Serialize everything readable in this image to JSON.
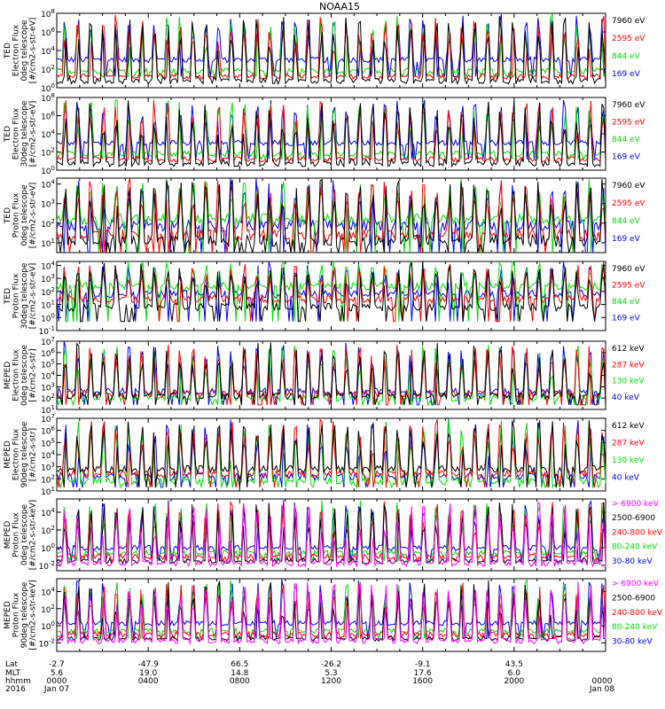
{
  "title": "NOAA15",
  "chart_data": [
    {
      "type": "line",
      "ylabel_lines": [
        "TED",
        "Electron Flux",
        "0deg telescope",
        "[#/cm2-s-str-eV]"
      ],
      "yticks": [
        "10^0",
        "10^2",
        "10^4",
        "10^6",
        "10^8"
      ],
      "log_range": [
        0,
        8
      ],
      "baseline": 1.5,
      "series": [
        {
          "name": "7960 eV",
          "color": "#000000",
          "level": 0.7
        },
        {
          "name": "2595 eV",
          "color": "#ff0000",
          "level": 1.2
        },
        {
          "name": "844 eV",
          "color": "#00dd00",
          "level": 1.8
        },
        {
          "name": "169 eV",
          "color": "#0000ff",
          "level": 3.0
        }
      ]
    },
    {
      "type": "line",
      "ylabel_lines": [
        "TED",
        "Electron Flux",
        "30deg telescope",
        "[#/cm2-s-str-eV]"
      ],
      "yticks": [
        "10^0",
        "10^2",
        "10^4",
        "10^6",
        "10^8"
      ],
      "log_range": [
        0,
        8
      ],
      "baseline": 1.5,
      "series": [
        {
          "name": "7960 eV",
          "color": "#000000",
          "level": 0.7
        },
        {
          "name": "2595 eV",
          "color": "#ff0000",
          "level": 1.2
        },
        {
          "name": "844 eV",
          "color": "#00dd00",
          "level": 1.8
        },
        {
          "name": "169 eV",
          "color": "#0000ff",
          "level": 3.0
        }
      ]
    },
    {
      "type": "line",
      "ylabel_lines": [
        "TED",
        "Proton Flux",
        "0deg telescope",
        "[#/cm2-s-str-eV]"
      ],
      "yticks": [
        "10^1",
        "10^2",
        "10^3",
        "10^4"
      ],
      "log_range": [
        0.5,
        4.3
      ],
      "baseline": 0.7,
      "series": [
        {
          "name": "7960 eV",
          "color": "#000000",
          "level": 1.1
        },
        {
          "name": "2595 eV",
          "color": "#ff0000",
          "level": 1.4
        },
        {
          "name": "844 eV",
          "color": "#00dd00",
          "level": 2.2
        },
        {
          "name": "169 eV",
          "color": "#0000ff",
          "level": 1.9
        }
      ]
    },
    {
      "type": "line",
      "ylabel_lines": [
        "TED",
        "Proton Flux",
        "30deg telescope",
        "[#/cm2-s-str-eV]"
      ],
      "yticks": [
        "10^-1",
        "10^0",
        "10^1",
        "10^2",
        "10^3",
        "10^4"
      ],
      "log_range": [
        -1,
        4.3
      ],
      "baseline": 0,
      "series": [
        {
          "name": "7960 eV",
          "color": "#000000",
          "level": 0.8
        },
        {
          "name": "2595 eV",
          "color": "#ff0000",
          "level": 1.4
        },
        {
          "name": "844 eV",
          "color": "#00dd00",
          "level": 2.4
        },
        {
          "name": "169 eV",
          "color": "#0000ff",
          "level": 1.8
        }
      ]
    },
    {
      "type": "line",
      "ylabel_lines": [
        "MEPED",
        "Electron Flux",
        "0deg telescope",
        "[#/cm2-s-str]"
      ],
      "yticks": [
        "10^1",
        "10^2",
        "10^3",
        "10^4",
        "10^5",
        "10^6",
        "10^7"
      ],
      "log_range": [
        1,
        7
      ],
      "baseline": 1.7,
      "series": [
        {
          "name": "612 keV",
          "color": "#000000",
          "level": 2.2
        },
        {
          "name": "287 keV",
          "color": "#ff0000",
          "level": 2.4
        },
        {
          "name": "130 keV",
          "color": "#00dd00",
          "level": 2.0
        },
        {
          "name": "40 keV",
          "color": "#0000ff",
          "level": 2.6
        }
      ]
    },
    {
      "type": "line",
      "ylabel_lines": [
        "MEPED",
        "Electron Flux",
        "90deg telescope",
        "[#/cm2-s-str]"
      ],
      "yticks": [
        "10^1",
        "10^2",
        "10^3",
        "10^4",
        "10^5",
        "10^6",
        "10^7"
      ],
      "log_range": [
        1,
        7
      ],
      "baseline": 1.6,
      "series": [
        {
          "name": "612 keV",
          "color": "#000000",
          "level": 2.8
        },
        {
          "name": "287 keV",
          "color": "#ff0000",
          "level": 2.4
        },
        {
          "name": "130 keV",
          "color": "#00dd00",
          "level": 1.8
        },
        {
          "name": "40 keV",
          "color": "#0000ff",
          "level": 2.2
        }
      ]
    },
    {
      "type": "line",
      "ylabel_lines": [
        "MEPED",
        "Proton Flux",
        "0deg telescope",
        "[#/cm2-s-str-keV]"
      ],
      "yticks": [
        "10^-2",
        "10^0",
        "10^2",
        "10^4"
      ],
      "log_range": [
        -2.6,
        5.5
      ],
      "baseline": -1.2,
      "series": [
        {
          "name": "> 6900 keV",
          "color": "#ff00ff",
          "level": -1.8
        },
        {
          "name": "2500-6900",
          "color": "#000000",
          "level": -1.5
        },
        {
          "name": "240-800 keV",
          "color": "#ff0000",
          "level": -1.0
        },
        {
          "name": "80-240 keV",
          "color": "#00dd00",
          "level": -0.6
        },
        {
          "name": "30-80 keV",
          "color": "#0000ff",
          "level": 0.0
        }
      ]
    },
    {
      "type": "line",
      "ylabel_lines": [
        "MEPED",
        "Proton Flux",
        "90deg telescope",
        "[#/cm2-s-str-keV]"
      ],
      "yticks": [
        "10^-2",
        "10^0",
        "10^2",
        "10^4"
      ],
      "log_range": [
        -3,
        5.5
      ],
      "baseline": -1.2,
      "series": [
        {
          "name": "> 6900 keV",
          "color": "#ff00ff",
          "level": -1.8
        },
        {
          "name": "2500-6900",
          "color": "#000000",
          "level": -1.5
        },
        {
          "name": "240-800 keV",
          "color": "#ff0000",
          "level": -1.0
        },
        {
          "name": "80-240 keV",
          "color": "#00dd00",
          "level": -0.6
        },
        {
          "name": "30-80 keV",
          "color": "#0000ff",
          "level": 0.3
        }
      ]
    }
  ],
  "xaxis": {
    "row_labels": [
      "Lat",
      "MLT",
      "hhmm",
      "2016"
    ],
    "columns": [
      {
        "lat": "-2.7",
        "mlt": "5.6",
        "hhmm": "0000",
        "date": "Jan 07"
      },
      {
        "lat": "-47.9",
        "mlt": "19.0",
        "hhmm": "0400",
        "date": ""
      },
      {
        "lat": "66.5",
        "mlt": "14.8",
        "hhmm": "0800",
        "date": ""
      },
      {
        "lat": "-26.2",
        "mlt": "5.3",
        "hhmm": "1200",
        "date": ""
      },
      {
        "lat": "-9.1",
        "mlt": "17.6",
        "hhmm": "1600",
        "date": ""
      },
      {
        "lat": "43.5",
        "mlt": "6.0",
        "hhmm": "2000",
        "date": ""
      },
      {
        "lat": "",
        "mlt": "",
        "hhmm": "0000",
        "date": "Jan 08"
      }
    ]
  }
}
